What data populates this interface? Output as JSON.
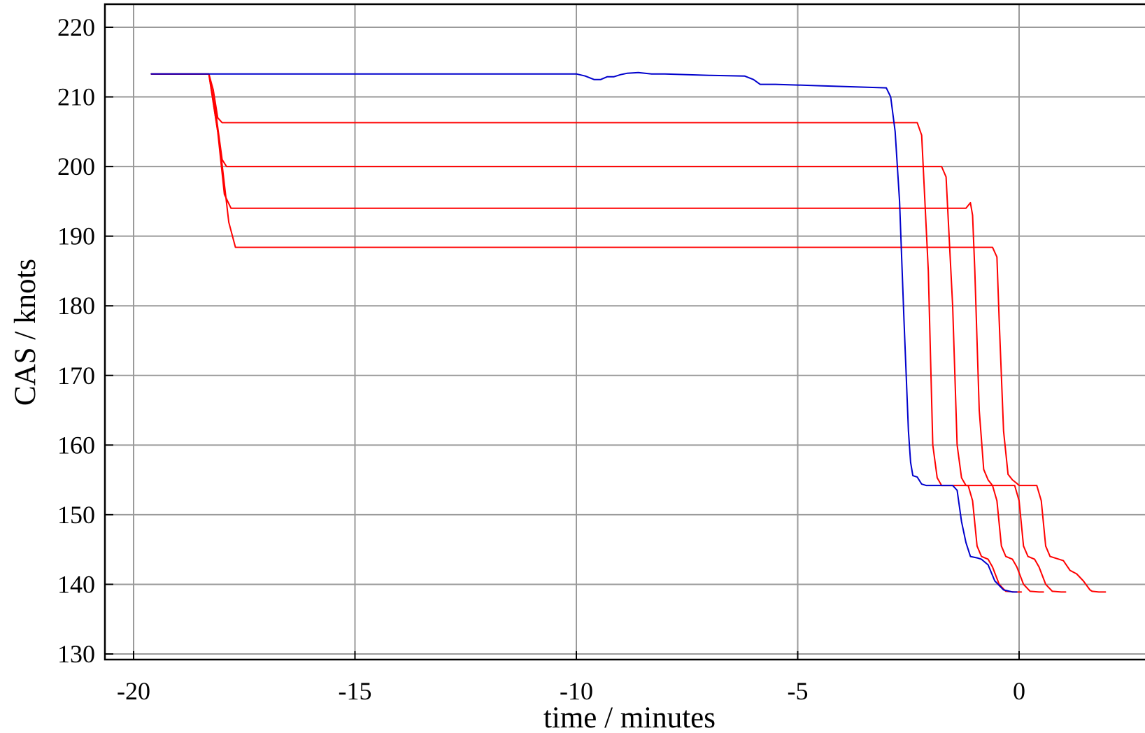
{
  "chart_data": {
    "type": "line",
    "title": "",
    "xlabel": "time / minutes",
    "ylabel": "CAS / knots",
    "xlim": [
      -20.7,
      2.9
    ],
    "ylim": [
      129,
      223.5
    ],
    "xticks": [
      -20,
      -15,
      -10,
      -5,
      0
    ],
    "xtick_labels": [
      "-20",
      "-15",
      "-10",
      "-5",
      "0"
    ],
    "yticks": [
      130,
      140,
      150,
      160,
      170,
      180,
      190,
      200,
      210,
      220
    ],
    "ytick_labels": [
      "130",
      "140",
      "150",
      "160",
      "170",
      "180",
      "190",
      "200",
      "210",
      "220"
    ],
    "grid": true,
    "legend": "none",
    "series": [
      {
        "color": "#ff0000",
        "x": [
          -19.6,
          -18.3,
          -18.2,
          -18.1,
          -18.0,
          -2.3,
          -2.2,
          -2.05,
          -1.95,
          -1.85,
          -1.75,
          -1.65,
          -1.55,
          -1.45,
          -1.15,
          -1.05,
          -0.95,
          -0.85,
          -0.7,
          -0.6,
          -0.45,
          -0.3,
          -0.1,
          0.05
        ],
        "y": [
          213.3,
          213.3,
          211.0,
          207.0,
          206.3,
          206.3,
          204.5,
          185.0,
          160.0,
          155.3,
          154.2,
          154.2,
          154.2,
          154.2,
          154.2,
          152.0,
          145.5,
          144.0,
          143.6,
          142.5,
          140.0,
          139.0,
          138.9,
          138.9
        ]
      },
      {
        "color": "#ff0000",
        "x": [
          -19.6,
          -18.3,
          -18.15,
          -18.0,
          -17.9,
          -1.75,
          -1.65,
          -1.5,
          -1.4,
          -1.3,
          -1.2,
          -1.1,
          -0.95,
          -0.6,
          -0.5,
          -0.4,
          -0.3,
          -0.15,
          -0.05,
          0.1,
          0.25,
          0.45,
          0.55
        ],
        "y": [
          213.3,
          213.3,
          208.0,
          201.0,
          200.0,
          200.0,
          198.5,
          180.0,
          160.0,
          155.3,
          154.2,
          154.2,
          154.2,
          154.2,
          152.0,
          145.5,
          144.0,
          143.6,
          142.5,
          140.0,
          139.0,
          138.9,
          138.9
        ]
      },
      {
        "color": "#ff0000",
        "x": [
          -19.6,
          -18.3,
          -18.1,
          -17.95,
          -17.8,
          -1.2,
          -1.1,
          -1.05,
          -1.0,
          -0.9,
          -0.8,
          -0.7,
          -0.6,
          -0.5,
          -0.1,
          0.0,
          0.1,
          0.2,
          0.35,
          0.45,
          0.6,
          0.75,
          0.95,
          1.05
        ],
        "y": [
          213.3,
          213.3,
          205.0,
          196.0,
          194.0,
          194.0,
          194.8,
          193.0,
          185.0,
          165.0,
          156.5,
          155.0,
          154.2,
          154.2,
          154.2,
          152.0,
          145.5,
          144.0,
          143.6,
          142.5,
          140.0,
          139.0,
          138.9,
          138.9
        ]
      },
      {
        "color": "#ff0000",
        "x": [
          -19.6,
          -18.3,
          -18.05,
          -17.85,
          -17.7,
          -0.6,
          -0.5,
          -0.45,
          -0.35,
          -0.25,
          -0.15,
          -0.05,
          0.0,
          0.4,
          0.5,
          0.6,
          0.7,
          0.85,
          1.0,
          1.15,
          1.3,
          1.45,
          1.6,
          1.65,
          1.8,
          1.95
        ],
        "y": [
          213.3,
          213.3,
          203.0,
          192.0,
          188.4,
          188.4,
          187.0,
          178.0,
          162.0,
          155.8,
          155.0,
          154.5,
          154.2,
          154.2,
          152.0,
          145.5,
          144.0,
          143.7,
          143.4,
          142.0,
          141.5,
          140.5,
          139.2,
          139.0,
          138.9,
          138.9
        ]
      },
      {
        "color": "#0000cc",
        "x": [
          -19.6,
          -10.0,
          -9.8,
          -9.6,
          -9.45,
          -9.3,
          -9.15,
          -9.0,
          -8.85,
          -8.6,
          -8.3,
          -8.0,
          -7.0,
          -6.2,
          -6.0,
          -5.85,
          -5.7,
          -5.5,
          -4.5,
          -3.5,
          -3.0,
          -2.9,
          -2.8,
          -2.7,
          -2.6,
          -2.5,
          -2.45,
          -2.4,
          -2.3,
          -2.2,
          -2.1,
          -2.0,
          -1.9,
          -1.7,
          -1.5,
          -1.4,
          -1.3,
          -1.2,
          -1.1,
          -0.95,
          -0.85,
          -0.7,
          -0.55,
          -0.35,
          -0.15,
          -0.05
        ],
        "y": [
          213.3,
          213.3,
          213.0,
          212.5,
          212.5,
          212.9,
          212.9,
          213.2,
          213.4,
          213.5,
          213.3,
          213.3,
          213.1,
          213.0,
          212.5,
          211.8,
          211.8,
          211.8,
          211.6,
          211.4,
          211.3,
          210.0,
          205.0,
          195.0,
          178.0,
          162.0,
          157.5,
          155.6,
          155.4,
          154.4,
          154.2,
          154.2,
          154.2,
          154.2,
          154.2,
          153.5,
          149.0,
          146.0,
          144.0,
          143.8,
          143.6,
          142.8,
          140.5,
          139.2,
          138.9,
          138.9
        ]
      }
    ]
  }
}
